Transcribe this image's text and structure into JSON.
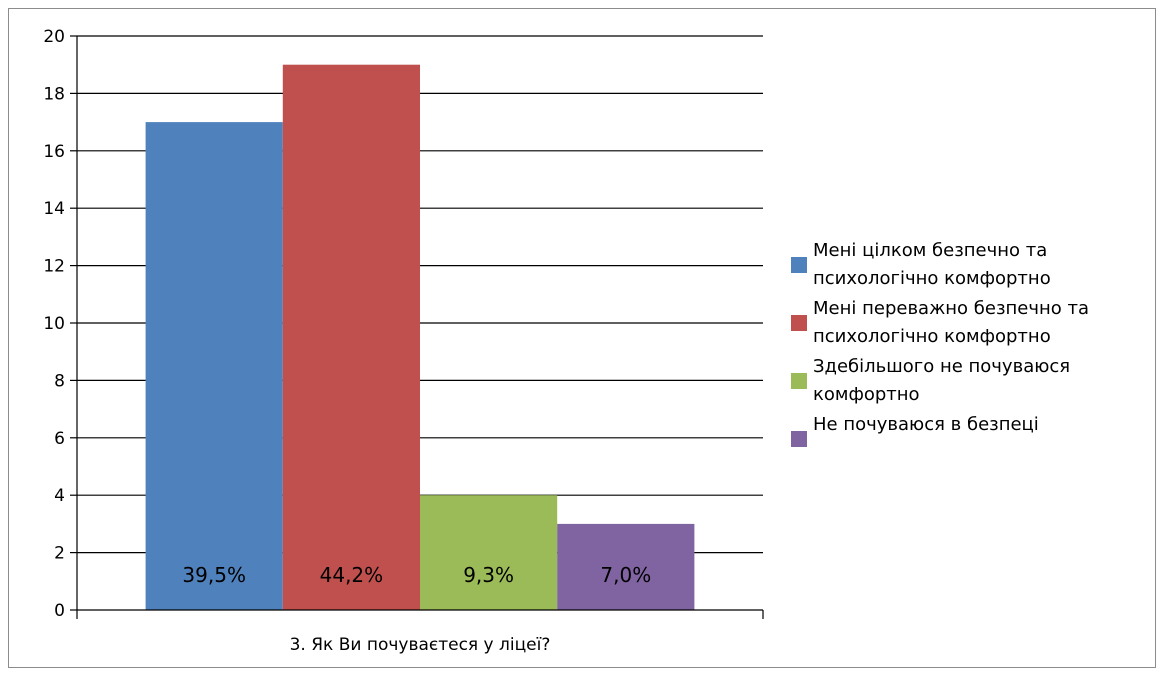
{
  "chart_data": {
    "type": "bar",
    "title": "",
    "xlabel": "",
    "ylabel": "",
    "categories": [
      "3. Як Ви почуваєтеся у ліцеї?"
    ],
    "ylim": [
      0,
      20
    ],
    "yticks": [
      0,
      2,
      4,
      6,
      8,
      10,
      12,
      14,
      16,
      18,
      20
    ],
    "grid": true,
    "legend_position": "right",
    "series": [
      {
        "name": "Мені цілком безпечно та психологічно комфортно",
        "legend_lines": [
          "Мені цілком безпечно та",
          "психологічно комфортно"
        ],
        "values": [
          17
        ],
        "data_label": "39,5%",
        "color": "#4f81bd"
      },
      {
        "name": "Мені переважно безпечно та психологічно комфортно",
        "legend_lines": [
          "Мені переважно безпечно та",
          "психологічно комфортно"
        ],
        "values": [
          19
        ],
        "data_label": "44,2%",
        "color": "#c0504d"
      },
      {
        "name": "Здебільшого не почуваюся комфортно",
        "legend_lines": [
          "Здебільшого не почуваюся",
          "комфортно"
        ],
        "values": [
          4
        ],
        "data_label": "9,3%",
        "color": "#9bbb59"
      },
      {
        "name": "Не почуваюся в безпеці",
        "legend_lines": [
          "Не почуваюся в безпеці"
        ],
        "values": [
          3
        ],
        "data_label": "7,0%",
        "color": "#8064a2"
      }
    ]
  }
}
